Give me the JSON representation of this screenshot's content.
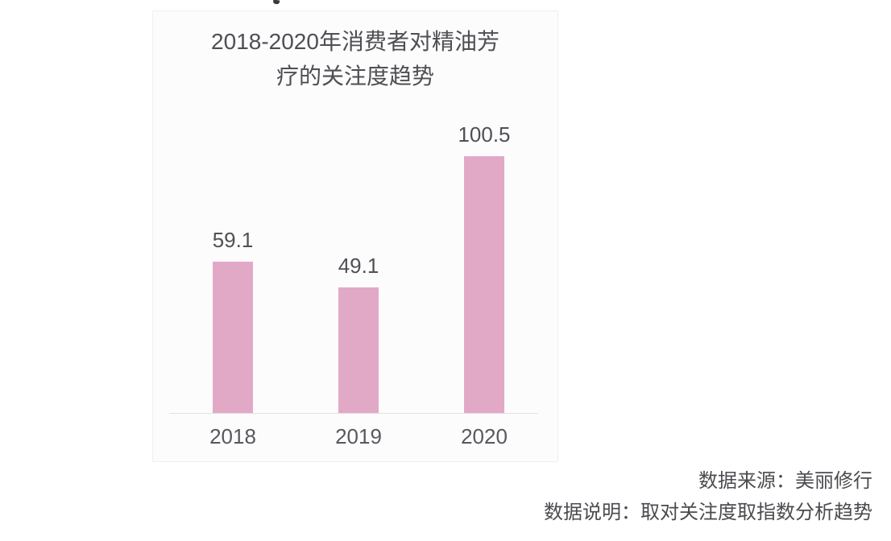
{
  "page": {
    "background_color": "#ffffff",
    "card_background_color": "#fcfcfd",
    "card_border_color": "#edeff3"
  },
  "chart_data": {
    "type": "bar",
    "title": "2018-2020年消费者对精油芳疗的关注度趋势",
    "title_lines": [
      "2018-2020年消费者对精油芳",
      "疗的关注度趋势"
    ],
    "categories": [
      "2018",
      "2019",
      "2020"
    ],
    "values": [
      59.1,
      49.1,
      100.5
    ],
    "value_labels": [
      "59.1",
      "49.1",
      "100.5"
    ],
    "xlabel": "",
    "ylabel": "",
    "ylim": [
      0,
      100.5
    ],
    "grid": false,
    "legend": "none",
    "bar_color": "#e2a9c7",
    "value_label_color": "#505055",
    "tick_label_color": "#58585e",
    "title_color": "#4e4e53",
    "axis_line_color": "#e3e3e8"
  },
  "footnote": {
    "source": "数据来源：美丽修行",
    "description": "数据说明：取对关注度取指数分析趋势"
  }
}
